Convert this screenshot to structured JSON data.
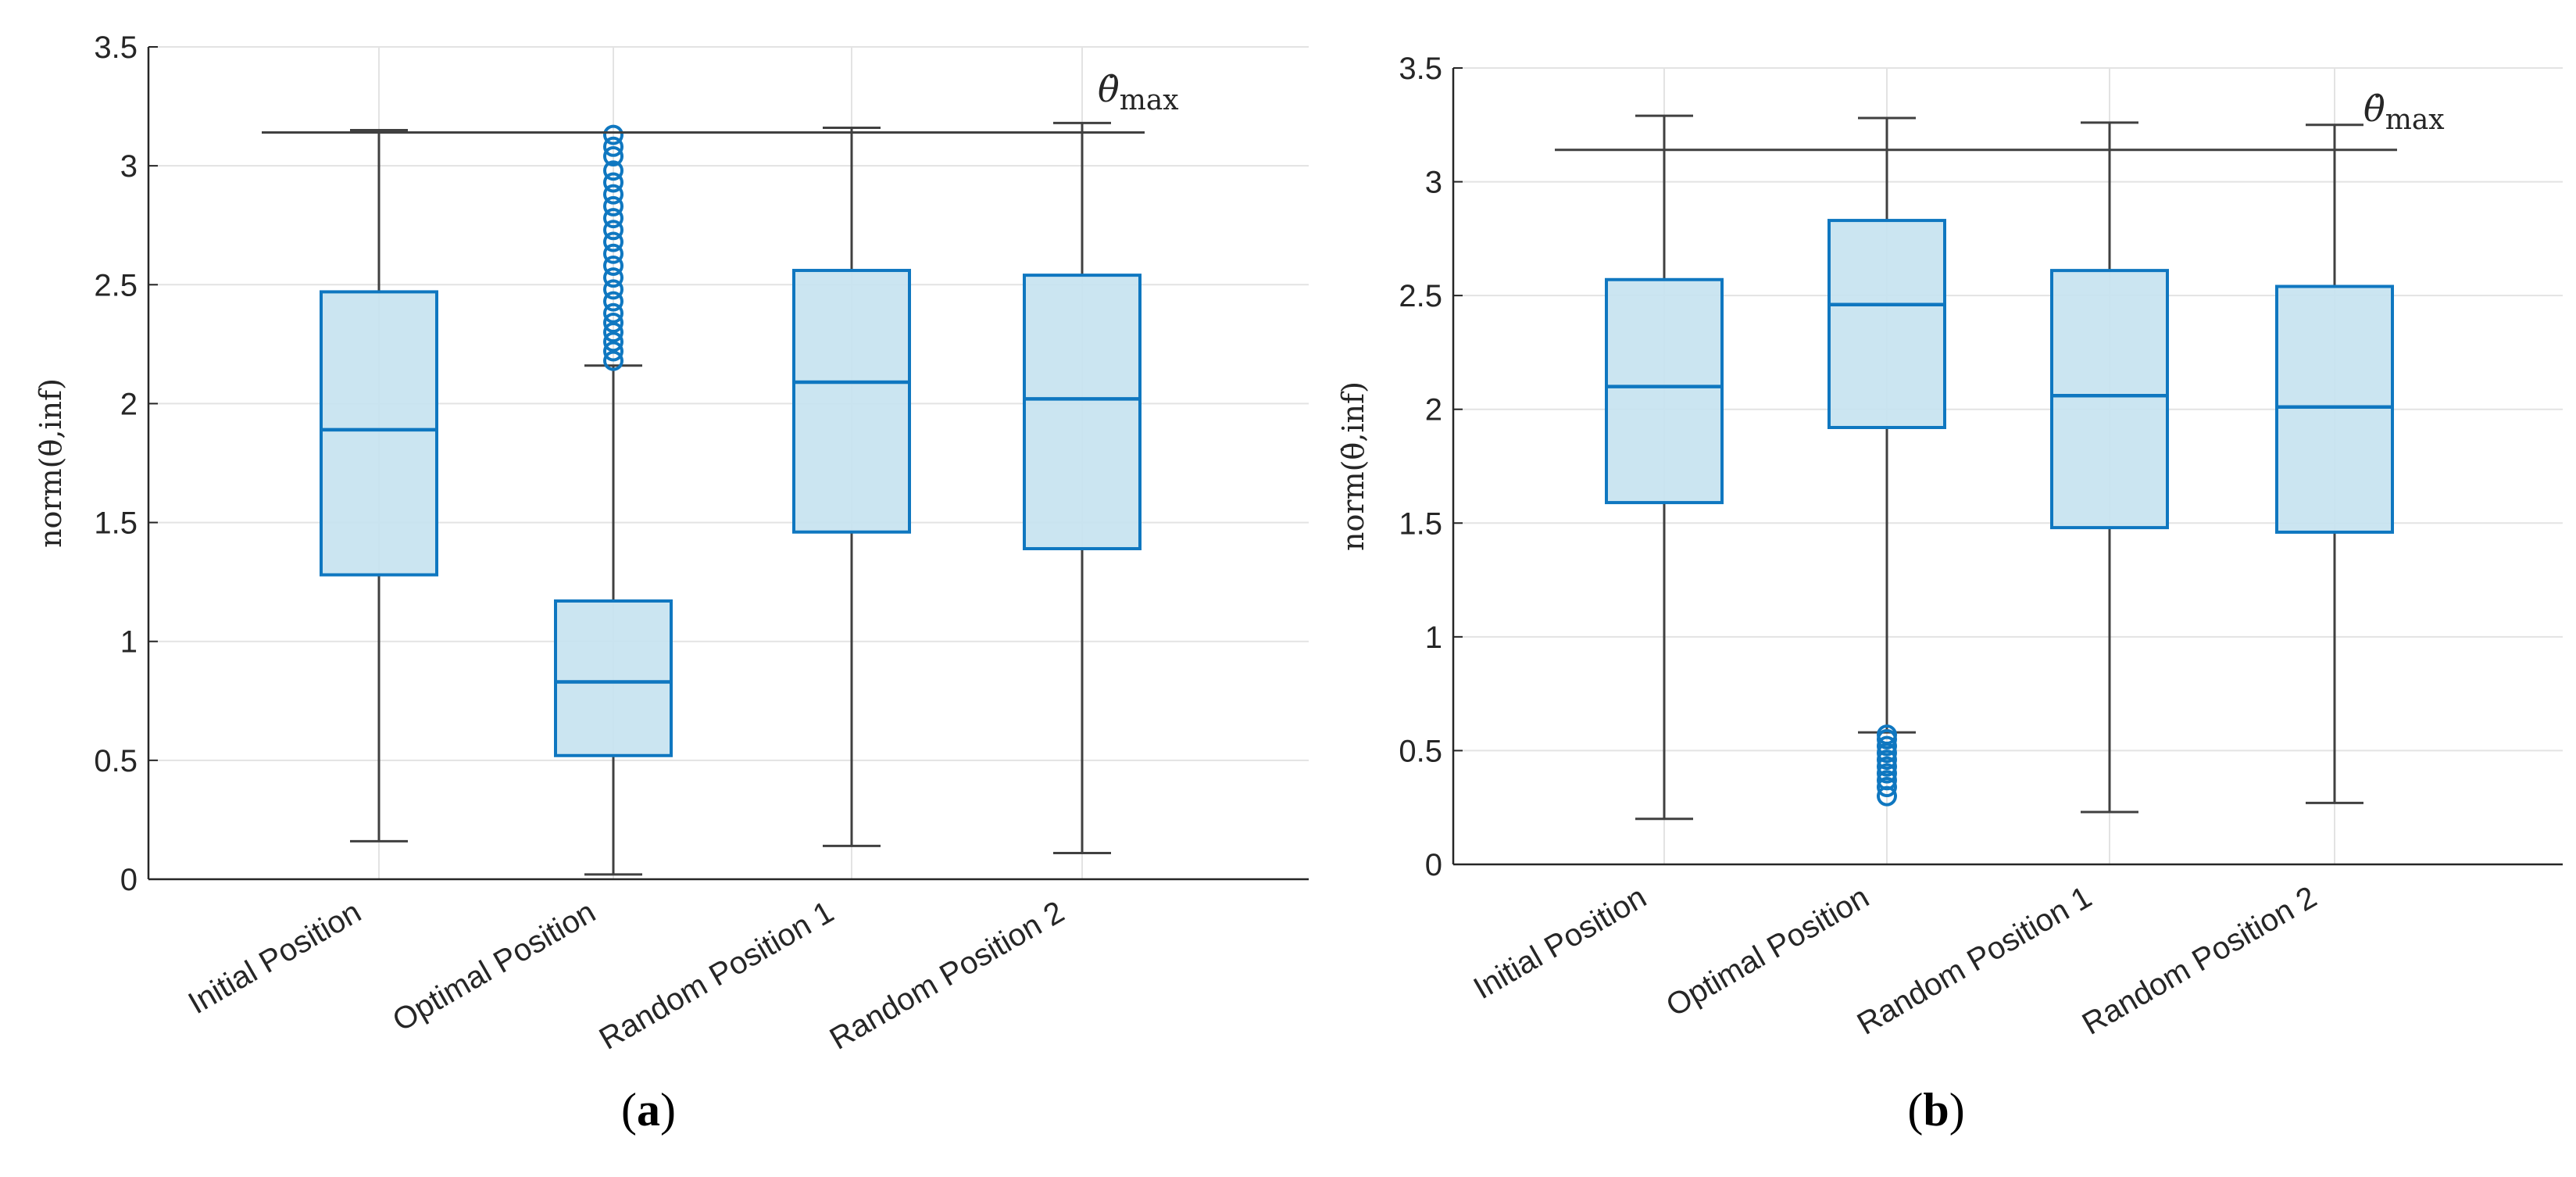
{
  "colors": {
    "box_fill": "#c5e2f0",
    "box_edge": "#0f77c0",
    "whisker": "#404040",
    "grid": "#e3e3e3",
    "axis": "#262626"
  },
  "chart_data": [
    {
      "type": "box",
      "panel_label": "(a)",
      "ylabel": "norm(θ̇,inf)",
      "ylim": [
        0,
        3.5
      ],
      "yticks": [
        "0",
        "0.5",
        "1",
        "1.5",
        "2",
        "2.5",
        "3",
        "3.5"
      ],
      "grid": true,
      "categories": [
        "Initial Position",
        "Optimal Position",
        "Random Position 1",
        "Random Position 2"
      ],
      "reference_line": {
        "label": "θ̇max",
        "value": 3.14
      },
      "boxes": [
        {
          "name": "Initial Position",
          "whisker_low": 0.16,
          "q1": 1.28,
          "median": 1.89,
          "q3": 2.47,
          "whisker_high": 3.15,
          "outliers": []
        },
        {
          "name": "Optimal Position",
          "whisker_low": 0.02,
          "q1": 0.52,
          "median": 0.83,
          "q3": 1.17,
          "whisker_high": 2.16,
          "outliers": [
            2.18,
            2.22,
            2.26,
            2.3,
            2.34,
            2.38,
            2.43,
            2.48,
            2.53,
            2.58,
            2.63,
            2.68,
            2.73,
            2.78,
            2.83,
            2.88,
            2.93,
            2.98,
            3.04,
            3.08,
            3.13
          ]
        },
        {
          "name": "Random Position 1",
          "whisker_low": 0.14,
          "q1": 1.46,
          "median": 2.09,
          "q3": 2.56,
          "whisker_high": 3.16,
          "outliers": []
        },
        {
          "name": "Random Position 2",
          "whisker_low": 0.11,
          "q1": 1.39,
          "median": 2.02,
          "q3": 2.54,
          "whisker_high": 3.18,
          "outliers": []
        }
      ]
    },
    {
      "type": "box",
      "panel_label": "(b)",
      "ylabel": "norm(θ̇,inf)",
      "ylim": [
        0,
        3.5
      ],
      "yticks": [
        "0",
        "0.5",
        "1",
        "1.5",
        "2",
        "2.5",
        "3",
        "3.5"
      ],
      "grid": true,
      "categories": [
        "Initial Position",
        "Optimal Position",
        "Random Position 1",
        "Random Position 2"
      ],
      "reference_line": {
        "label": "θ̇max",
        "value": 3.14
      },
      "boxes": [
        {
          "name": "Initial Position",
          "whisker_low": 0.2,
          "q1": 1.59,
          "median": 2.1,
          "q3": 2.57,
          "whisker_high": 3.29,
          "outliers": []
        },
        {
          "name": "Optimal Position",
          "whisker_low": 0.58,
          "q1": 1.92,
          "median": 2.46,
          "q3": 2.83,
          "whisker_high": 3.28,
          "outliers": [
            0.3,
            0.34,
            0.37,
            0.4,
            0.43,
            0.46,
            0.49,
            0.52,
            0.55,
            0.57
          ]
        },
        {
          "name": "Random Position 1",
          "whisker_low": 0.23,
          "q1": 1.48,
          "median": 2.06,
          "q3": 2.61,
          "whisker_high": 3.26,
          "outliers": []
        },
        {
          "name": "Random Position 2",
          "whisker_low": 0.27,
          "q1": 1.46,
          "median": 2.01,
          "q3": 2.54,
          "whisker_high": 3.25,
          "outliers": []
        }
      ]
    }
  ]
}
